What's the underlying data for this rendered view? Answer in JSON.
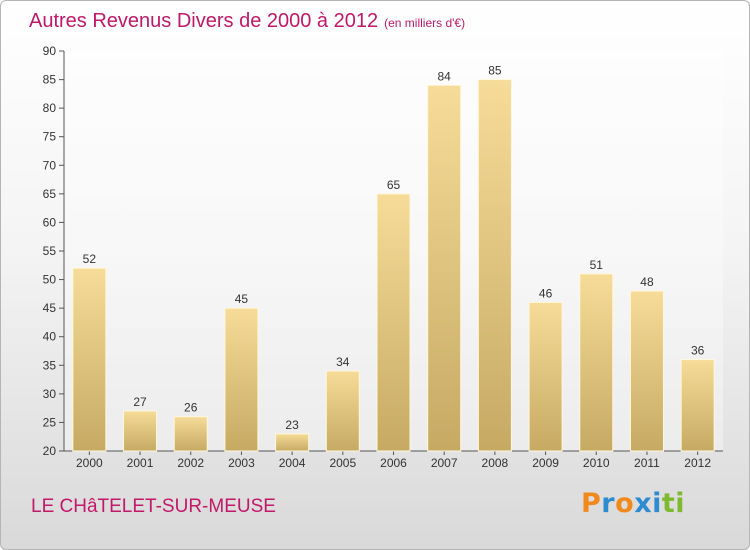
{
  "header": {
    "title": "Autres Revenus Divers de 2000 à 2012",
    "subtitle": "(en milliers d'€)"
  },
  "footer": {
    "city": "LE CHâTELET-SUR-MEUSE",
    "logo": "Proxiti"
  },
  "colors": {
    "title": "#c2186a",
    "bar_top": "#f6dc98",
    "bar_bottom": "#c6aa64",
    "logo_letters": [
      "#f08a1c",
      "#2d8bd0",
      "#f08a1c",
      "#2d8bd0",
      "#2d8bd0",
      "#7dba2f",
      "#7dba2f"
    ]
  },
  "chart_data": {
    "type": "bar",
    "title": "Autres Revenus Divers de 2000 à 2012",
    "xlabel": "",
    "ylabel": "",
    "categories": [
      "2000",
      "2001",
      "2002",
      "2003",
      "2004",
      "2005",
      "2006",
      "2007",
      "2008",
      "2009",
      "2010",
      "2011",
      "2012"
    ],
    "values": [
      52,
      27,
      26,
      45,
      23,
      34,
      65,
      84,
      85,
      46,
      51,
      48,
      36
    ],
    "ylim": [
      20,
      90
    ],
    "yticks": [
      20,
      25,
      30,
      35,
      40,
      45,
      50,
      55,
      60,
      65,
      70,
      75,
      80,
      85,
      90
    ],
    "grid": false,
    "data_labels": true
  }
}
